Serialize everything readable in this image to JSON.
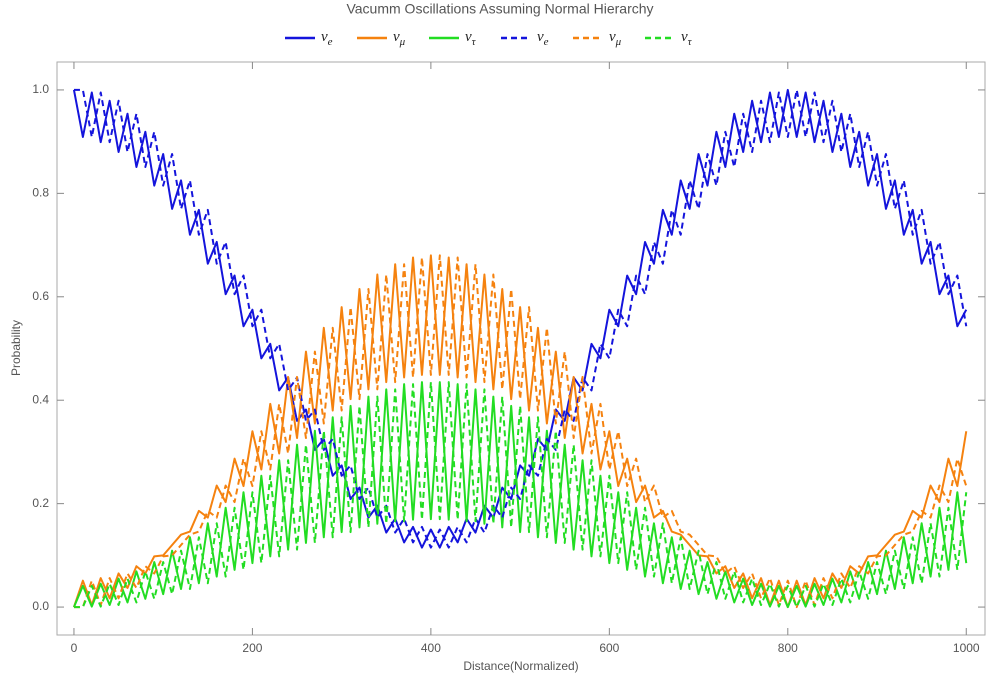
{
  "chart_data": {
    "type": "line",
    "title": "Vacumm Oscillations Assuming Normal Hierarchy",
    "x_label": "Distance(Normalized)",
    "y_label": "Probability",
    "xlim": [
      -19,
      1021
    ],
    "ylim": [
      -0.054,
      1.054
    ],
    "xticks": [
      0,
      200,
      400,
      600,
      800,
      1000
    ],
    "yticks": [
      {
        "value": 0,
        "label": "0.0"
      },
      0.2,
      0.4,
      0.6,
      0.8,
      {
        "value": 1,
        "label": "1.0"
      }
    ],
    "x": [
      0,
      10,
      20,
      30,
      40,
      50,
      60,
      70,
      80,
      90,
      100,
      110,
      120,
      130,
      140,
      150,
      160,
      170,
      180,
      190,
      200,
      210,
      220,
      230,
      240,
      250,
      260,
      270,
      280,
      290,
      300,
      310,
      320,
      330,
      340,
      350,
      360,
      370,
      380,
      390,
      400,
      410,
      420,
      430,
      440,
      450,
      460,
      470,
      480,
      490,
      500,
      510,
      520,
      530,
      540,
      550,
      560,
      570,
      580,
      590,
      600,
      610,
      620,
      630,
      640,
      650,
      660,
      670,
      680,
      690,
      700,
      710,
      720,
      730,
      740,
      750,
      760,
      770,
      780,
      790,
      800,
      810,
      820,
      830,
      840,
      850,
      860,
      870,
      880,
      890,
      900,
      910,
      920,
      930,
      940,
      950,
      960,
      970,
      980,
      990,
      1000
    ],
    "series": [
      {
        "name": "νe",
        "color": "#1414dc",
        "dashed": false,
        "values": [
          1,
          0.909,
          0.995,
          0.899,
          0.979,
          0.88,
          0.954,
          0.851,
          0.919,
          0.815,
          0.876,
          0.77,
          0.825,
          0.72,
          0.768,
          0.664,
          0.706,
          0.605,
          0.641,
          0.543,
          0.575,
          0.481,
          0.509,
          0.419,
          0.444,
          0.36,
          0.382,
          0.304,
          0.325,
          0.254,
          0.274,
          0.209,
          0.231,
          0.173,
          0.196,
          0.144,
          0.171,
          0.125,
          0.155,
          0.115,
          0.15,
          0.115,
          0.155,
          0.125,
          0.171,
          0.144,
          0.196,
          0.173,
          0.231,
          0.209,
          0.274,
          0.254,
          0.325,
          0.304,
          0.382,
          0.36,
          0.444,
          0.419,
          0.509,
          0.481,
          0.575,
          0.543,
          0.641,
          0.605,
          0.706,
          0.664,
          0.768,
          0.72,
          0.825,
          0.77,
          0.876,
          0.815,
          0.919,
          0.851,
          0.954,
          0.88,
          0.979,
          0.899,
          0.995,
          0.909,
          1,
          0.909,
          0.995,
          0.899,
          0.979,
          0.88,
          0.954,
          0.851,
          0.919,
          0.815,
          0.876,
          0.77,
          0.825,
          0.72,
          0.768,
          0.664,
          0.706,
          0.605,
          0.641,
          0.543,
          0.575
        ]
      },
      {
        "name": "νμ",
        "color": "#f5820f",
        "dashed": false,
        "values": [
          0,
          0.051,
          0.004,
          0.056,
          0.017,
          0.065,
          0.037,
          0.079,
          0.065,
          0.098,
          0.1,
          0.12,
          0.14,
          0.146,
          0.186,
          0.173,
          0.235,
          0.203,
          0.287,
          0.234,
          0.34,
          0.266,
          0.393,
          0.297,
          0.445,
          0.327,
          0.494,
          0.355,
          0.54,
          0.38,
          0.58,
          0.402,
          0.615,
          0.421,
          0.643,
          0.435,
          0.663,
          0.444,
          0.676,
          0.449,
          0.68,
          0.449,
          0.676,
          0.444,
          0.663,
          0.435,
          0.643,
          0.421,
          0.615,
          0.402,
          0.58,
          0.38,
          0.54,
          0.355,
          0.494,
          0.327,
          0.445,
          0.297,
          0.393,
          0.266,
          0.34,
          0.234,
          0.287,
          0.203,
          0.235,
          0.173,
          0.186,
          0.146,
          0.14,
          0.12,
          0.1,
          0.098,
          0.065,
          0.079,
          0.037,
          0.065,
          0.017,
          0.056,
          0.004,
          0.051,
          0,
          0.051,
          0.004,
          0.056,
          0.017,
          0.065,
          0.037,
          0.079,
          0.065,
          0.098,
          0.1,
          0.12,
          0.14,
          0.146,
          0.186,
          0.173,
          0.235,
          0.203,
          0.287,
          0.234,
          0.34
        ]
      },
      {
        "name": "ντ",
        "color": "#22dd22",
        "dashed": false,
        "values": [
          0,
          0.041,
          0.001,
          0.045,
          0.004,
          0.055,
          0.009,
          0.069,
          0.016,
          0.087,
          0.025,
          0.109,
          0.035,
          0.135,
          0.046,
          0.162,
          0.059,
          0.192,
          0.072,
          0.222,
          0.085,
          0.254,
          0.098,
          0.284,
          0.111,
          0.314,
          0.124,
          0.341,
          0.135,
          0.367,
          0.145,
          0.389,
          0.154,
          0.407,
          0.161,
          0.421,
          0.166,
          0.431,
          0.169,
          0.435,
          0.17,
          0.435,
          0.169,
          0.431,
          0.166,
          0.421,
          0.161,
          0.407,
          0.154,
          0.389,
          0.145,
          0.367,
          0.135,
          0.341,
          0.124,
          0.314,
          0.111,
          0.284,
          0.098,
          0.254,
          0.085,
          0.222,
          0.072,
          0.192,
          0.059,
          0.162,
          0.046,
          0.135,
          0.035,
          0.109,
          0.025,
          0.087,
          0.016,
          0.069,
          0.009,
          0.055,
          0.004,
          0.045,
          0.001,
          0.041,
          0,
          0.041,
          0.001,
          0.045,
          0.004,
          0.055,
          0.009,
          0.069,
          0.016,
          0.087,
          0.025,
          0.109,
          0.035,
          0.135,
          0.046,
          0.162,
          0.059,
          0.192,
          0.072,
          0.222,
          0.085
        ]
      },
      {
        "name": "νe",
        "color": "#1414dc",
        "dashed": true,
        "values": [
          1,
          1,
          0.909,
          0.995,
          0.899,
          0.979,
          0.88,
          0.954,
          0.851,
          0.919,
          0.815,
          0.876,
          0.77,
          0.825,
          0.72,
          0.768,
          0.664,
          0.706,
          0.605,
          0.641,
          0.543,
          0.575,
          0.481,
          0.509,
          0.419,
          0.444,
          0.36,
          0.382,
          0.304,
          0.325,
          0.254,
          0.274,
          0.209,
          0.231,
          0.173,
          0.196,
          0.144,
          0.171,
          0.125,
          0.155,
          0.115,
          0.15,
          0.115,
          0.155,
          0.125,
          0.171,
          0.144,
          0.196,
          0.173,
          0.231,
          0.209,
          0.274,
          0.254,
          0.325,
          0.304,
          0.382,
          0.36,
          0.444,
          0.419,
          0.509,
          0.481,
          0.575,
          0.543,
          0.641,
          0.605,
          0.706,
          0.664,
          0.768,
          0.72,
          0.825,
          0.77,
          0.876,
          0.815,
          0.919,
          0.851,
          0.954,
          0.88,
          0.979,
          0.899,
          0.995,
          0.909,
          1,
          0.909,
          0.995,
          0.899,
          0.979,
          0.88,
          0.954,
          0.851,
          0.919,
          0.815,
          0.876,
          0.77,
          0.825,
          0.72,
          0.768,
          0.664,
          0.706,
          0.605,
          0.641,
          0.543
        ]
      },
      {
        "name": "νμ",
        "color": "#f5820f",
        "dashed": true,
        "values": [
          0,
          0,
          0.051,
          0.004,
          0.056,
          0.017,
          0.065,
          0.037,
          0.079,
          0.065,
          0.098,
          0.1,
          0.12,
          0.14,
          0.146,
          0.186,
          0.173,
          0.235,
          0.203,
          0.287,
          0.234,
          0.34,
          0.266,
          0.393,
          0.297,
          0.445,
          0.327,
          0.494,
          0.355,
          0.54,
          0.38,
          0.58,
          0.402,
          0.615,
          0.421,
          0.643,
          0.435,
          0.663,
          0.444,
          0.676,
          0.449,
          0.68,
          0.449,
          0.676,
          0.444,
          0.663,
          0.435,
          0.643,
          0.421,
          0.615,
          0.402,
          0.58,
          0.38,
          0.54,
          0.355,
          0.494,
          0.327,
          0.445,
          0.297,
          0.393,
          0.266,
          0.34,
          0.234,
          0.287,
          0.203,
          0.235,
          0.173,
          0.186,
          0.146,
          0.14,
          0.12,
          0.1,
          0.098,
          0.065,
          0.079,
          0.037,
          0.065,
          0.017,
          0.056,
          0.004,
          0.051,
          0,
          0.051,
          0.004,
          0.056,
          0.017,
          0.065,
          0.037,
          0.079,
          0.065,
          0.098,
          0.1,
          0.12,
          0.14,
          0.146,
          0.186,
          0.173,
          0.235,
          0.203,
          0.287,
          0.234
        ]
      },
      {
        "name": "ντ",
        "color": "#22dd22",
        "dashed": true,
        "values": [
          0,
          0,
          0.041,
          0.001,
          0.045,
          0.004,
          0.055,
          0.009,
          0.069,
          0.016,
          0.087,
          0.025,
          0.109,
          0.035,
          0.135,
          0.046,
          0.162,
          0.059,
          0.192,
          0.072,
          0.222,
          0.085,
          0.254,
          0.098,
          0.284,
          0.111,
          0.314,
          0.124,
          0.341,
          0.135,
          0.367,
          0.145,
          0.389,
          0.154,
          0.407,
          0.161,
          0.421,
          0.166,
          0.431,
          0.169,
          0.435,
          0.17,
          0.435,
          0.169,
          0.431,
          0.166,
          0.421,
          0.161,
          0.407,
          0.154,
          0.389,
          0.145,
          0.367,
          0.135,
          0.341,
          0.124,
          0.314,
          0.111,
          0.284,
          0.098,
          0.254,
          0.085,
          0.222,
          0.072,
          0.192,
          0.059,
          0.162,
          0.046,
          0.135,
          0.035,
          0.109,
          0.025,
          0.087,
          0.016,
          0.069,
          0.009,
          0.055,
          0.004,
          0.045,
          0.001,
          0.041,
          0,
          0.041,
          0.001,
          0.045,
          0.004,
          0.055,
          0.009,
          0.069,
          0.016,
          0.087,
          0.025,
          0.109,
          0.035,
          0.135,
          0.046,
          0.162,
          0.059,
          0.192,
          0.072,
          0.222
        ]
      }
    ]
  }
}
